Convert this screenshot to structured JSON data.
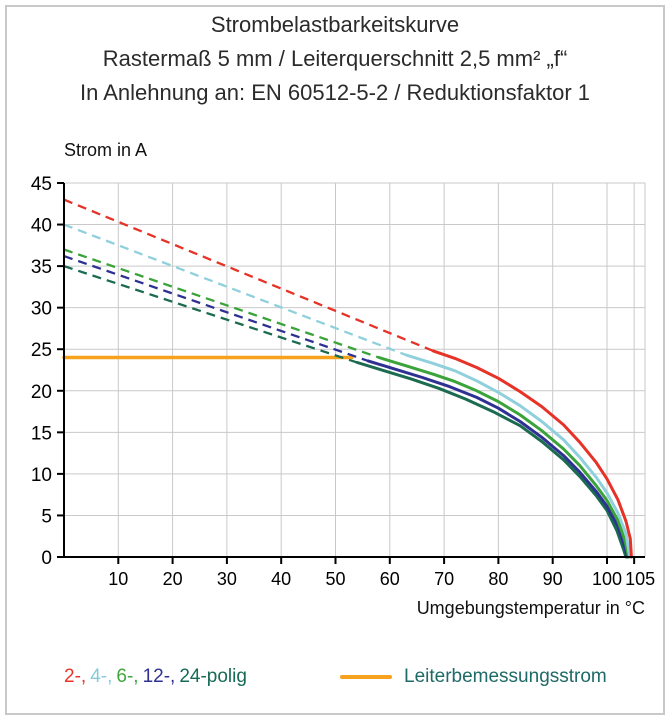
{
  "header": {
    "line1": "Strombelastbarkeitskurve",
    "line2": "Rastermaß 5 mm / Leiterquerschnitt 2,5 mm² „f“",
    "line3": "In Anlehnung an: EN 60512-5-2 / Reduktionsfaktor 1"
  },
  "legend": {
    "pole_items": [
      {
        "label": "2-,",
        "color": "#e8342b"
      },
      {
        "label": "4-,",
        "color": "#85ccd9"
      },
      {
        "label": "6-,",
        "color": "#3fa63c"
      },
      {
        "label": "12-,",
        "color": "#2e3192"
      },
      {
        "label": "24-polig",
        "color": "#176a55"
      }
    ],
    "rated_current_label": "Leiterbemessungsstrom",
    "rated_label_color": "#1d6a66"
  },
  "chart_data": {
    "type": "line",
    "title": "Strombelastbarkeitskurve",
    "xlabel": "Umgebungstemperatur in °C",
    "ylabel": "Strom in A",
    "xlim": [
      0,
      107
    ],
    "ylim": [
      0,
      45
    ],
    "x_ticks": [
      10,
      20,
      30,
      40,
      50,
      60,
      70,
      80,
      90,
      100,
      105
    ],
    "y_ticks": [
      0,
      5,
      10,
      15,
      20,
      25,
      30,
      35,
      40,
      45
    ],
    "grid": true,
    "grid_color": "#c9c9c9",
    "axis_color": "#000000",
    "rated_current": {
      "label": "Leiterbemessungsstrom",
      "value": 24,
      "x_start": 0,
      "x_end": 53,
      "color": "#f6a21d"
    },
    "series": [
      {
        "name": "24-polig",
        "color": "#1a6b50",
        "dashed": [
          [
            0,
            35
          ],
          [
            54,
            23.4
          ]
        ],
        "solid": [
          [
            54,
            23.4
          ],
          [
            59,
            22.4
          ],
          [
            64,
            21.4
          ],
          [
            69,
            20.3
          ],
          [
            74,
            19.0
          ],
          [
            79,
            17.5
          ],
          [
            84,
            15.8
          ],
          [
            88,
            13.9
          ],
          [
            92,
            11.7
          ],
          [
            95,
            9.7
          ],
          [
            98,
            7.4
          ],
          [
            100,
            5.6
          ],
          [
            101.8,
            3.2
          ],
          [
            103,
            1.0
          ],
          [
            103.5,
            0
          ]
        ]
      },
      {
        "name": "12-polig",
        "color": "#2e3192",
        "dashed": [
          [
            0,
            36.2
          ],
          [
            56,
            23.6
          ]
        ],
        "solid": [
          [
            56,
            23.6
          ],
          [
            61,
            22.6
          ],
          [
            66,
            21.6
          ],
          [
            71,
            20.5
          ],
          [
            76,
            19.2
          ],
          [
            80,
            17.9
          ],
          [
            84,
            16.3
          ],
          [
            88,
            14.4
          ],
          [
            92,
            12.2
          ],
          [
            95,
            10.2
          ],
          [
            98,
            7.9
          ],
          [
            100,
            6.1
          ],
          [
            102,
            3.7
          ],
          [
            103.2,
            1.4
          ],
          [
            103.8,
            0
          ]
        ]
      },
      {
        "name": "6-polig",
        "color": "#3aa33a",
        "dashed": [
          [
            0,
            37
          ],
          [
            58,
            24.0
          ]
        ],
        "solid": [
          [
            58,
            24.0
          ],
          [
            63,
            23.0
          ],
          [
            68,
            22.0
          ],
          [
            72,
            21.1
          ],
          [
            76,
            20.0
          ],
          [
            80,
            18.7
          ],
          [
            84,
            17.1
          ],
          [
            88,
            15.2
          ],
          [
            92,
            13.0
          ],
          [
            95,
            11.0
          ],
          [
            98,
            8.6
          ],
          [
            100,
            6.8
          ],
          [
            102,
            4.4
          ],
          [
            103.3,
            2.0
          ],
          [
            104,
            0
          ]
        ]
      },
      {
        "name": "4-polig",
        "color": "#8fd0dc",
        "dashed": [
          [
            0,
            40
          ],
          [
            63,
            24.3
          ]
        ],
        "solid": [
          [
            63,
            24.3
          ],
          [
            68,
            23.3
          ],
          [
            72,
            22.4
          ],
          [
            76,
            21.2
          ],
          [
            80,
            19.8
          ],
          [
            84,
            18.2
          ],
          [
            88,
            16.3
          ],
          [
            92,
            14.1
          ],
          [
            95,
            12.0
          ],
          [
            98,
            9.6
          ],
          [
            100,
            7.7
          ],
          [
            102,
            5.3
          ],
          [
            103.5,
            2.8
          ],
          [
            104.2,
            0
          ]
        ]
      },
      {
        "name": "2-polig",
        "color": "#e63227",
        "dashed": [
          [
            0,
            43
          ],
          [
            68,
            24.8
          ]
        ],
        "solid": [
          [
            68,
            24.8
          ],
          [
            72,
            23.9
          ],
          [
            76,
            22.8
          ],
          [
            80,
            21.5
          ],
          [
            84,
            19.9
          ],
          [
            88,
            18.1
          ],
          [
            92,
            15.9
          ],
          [
            95,
            13.8
          ],
          [
            98,
            11.4
          ],
          [
            100,
            9.4
          ],
          [
            102,
            6.9
          ],
          [
            103.5,
            4.3
          ],
          [
            104.3,
            2.2
          ],
          [
            104.5,
            0
          ]
        ]
      }
    ]
  }
}
